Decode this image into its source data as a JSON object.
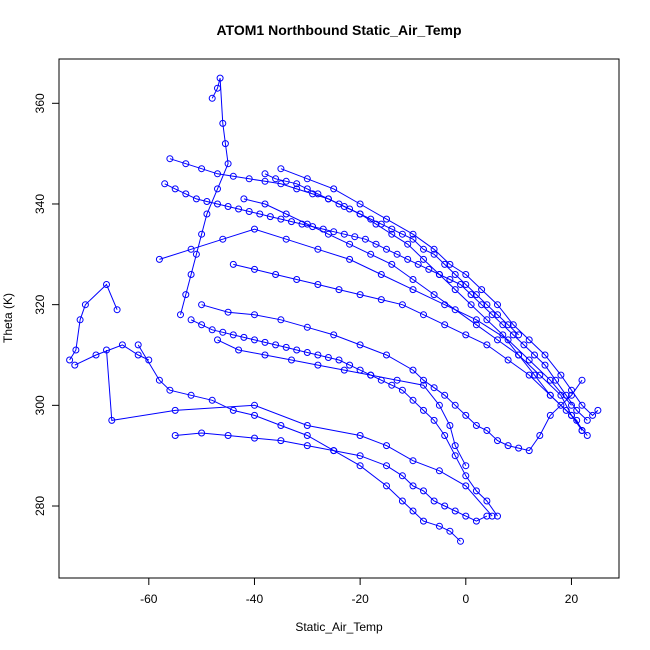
{
  "chart_data": {
    "type": "scatter",
    "title": "ATOM1 Northbound Static_Air_Temp",
    "xlabel": "Static_Air_Temp",
    "ylabel": "Theta (K)",
    "xlim": [
      -77,
      29
    ],
    "ylim": [
      265.7,
      368.8
    ],
    "xticks": [
      -60,
      -40,
      -20,
      0,
      20
    ],
    "yticks": [
      280,
      300,
      320,
      340,
      360
    ],
    "grid": false,
    "style": {
      "point": "open-circle",
      "connected": true
    },
    "colors": {
      "series": "#0000ff",
      "axis": "#000000"
    },
    "series": [
      {
        "x": [
          -75.0,
          -73.8,
          -73.0,
          -72.0,
          -68.0,
          -66.0
        ],
        "y": [
          309.0,
          311.0,
          317.0,
          320.0,
          324.0,
          319.0
        ]
      },
      {
        "x": [
          -68.0,
          -67.0,
          -55.0,
          -40.0,
          -30.0,
          -20.0,
          -15.0,
          -10.0,
          -5.0,
          0.0,
          5.0
        ],
        "y": [
          311.0,
          297.0,
          299.0,
          300.0,
          296.0,
          294.0,
          292.0,
          289.0,
          287.0,
          284.0,
          278.0
        ]
      },
      {
        "x": [
          -62.0,
          -58.0,
          -56.0,
          -52.0,
          -48.0,
          -44.0,
          -40.0,
          -35.0,
          -30.0,
          -25.0,
          -20.0,
          -15.0,
          -12.0,
          -10.0,
          -8.0,
          -5.0,
          -3.0,
          -1.0
        ],
        "y": [
          312.0,
          305.0,
          303.0,
          302.0,
          301.0,
          299.0,
          298.0,
          296.0,
          294.0,
          291.0,
          288.0,
          284.0,
          281.0,
          279.0,
          277.0,
          276.0,
          275.0,
          273.0
        ]
      },
      {
        "x": [
          -55.0,
          -50.0,
          -45.0,
          -40.0,
          -35.0,
          -30.0,
          -25.0,
          -20.0,
          -15.0,
          -12.0,
          -10.0,
          -8.0,
          -6.0,
          -4.0,
          -2.0,
          0.0,
          2.0,
          4.0
        ],
        "y": [
          294.0,
          294.5,
          294.0,
          293.5,
          293.0,
          292.0,
          291.0,
          290.0,
          288.0,
          286.0,
          284.0,
          283.0,
          281.0,
          280.0,
          279.0,
          278.0,
          277.0,
          278.0
        ]
      },
      {
        "x": [
          -47.0,
          -43.0,
          -38.0,
          -33.0,
          -28.0,
          -23.0,
          -18.0,
          -13.0,
          -8.0,
          -5.0,
          -3.0,
          -2.0,
          0.0
        ],
        "y": [
          313.0,
          311.0,
          310.0,
          309.0,
          308.0,
          307.0,
          306.0,
          305.0,
          304.0,
          300.0,
          296.0,
          292.0,
          288.0
        ]
      },
      {
        "x": [
          -52.0,
          -50.0,
          -48.0,
          -46.0,
          -44.0,
          -42.0,
          -40.0,
          -38.0,
          -36.0,
          -34.0,
          -32.0,
          -30.0,
          -28.0,
          -26.0,
          -24.0,
          -22.0,
          -20.0,
          -18.0,
          -16.0,
          -14.0,
          -12.0,
          -10.0,
          -8.0,
          -6.0,
          -4.0,
          -2.0,
          0.0,
          2.0,
          4.0,
          6.0
        ],
        "y": [
          317.0,
          316.0,
          315.0,
          314.5,
          314.0,
          313.5,
          313.0,
          312.5,
          312.0,
          311.5,
          311.0,
          310.5,
          310.0,
          309.5,
          309.0,
          308.0,
          307.0,
          306.0,
          305.0,
          304.0,
          303.0,
          301.0,
          299.0,
          297.0,
          294.0,
          290.0,
          286.0,
          283.0,
          281.0,
          278.0
        ]
      },
      {
        "x": [
          -50.0,
          -45.0,
          -40.0,
          -35.0,
          -30.0,
          -25.0,
          -20.0,
          -15.0,
          -10.0,
          -8.0,
          -6.0,
          -4.0,
          -2.0,
          0.0,
          2.0,
          4.0,
          6.0,
          8.0,
          10.0,
          12.0,
          14.0,
          16.0,
          18.0,
          20.0,
          22.0
        ],
        "y": [
          320.0,
          318.5,
          318.0,
          317.0,
          315.5,
          314.0,
          312.0,
          310.0,
          307.0,
          305.0,
          303.5,
          302.0,
          300.0,
          298.0,
          296.0,
          295.0,
          293.0,
          292.0,
          291.5,
          291.0,
          294.0,
          298.0,
          300.0,
          302.0,
          305.0
        ]
      },
      {
        "x": [
          -56.0,
          -53.0,
          -50.0,
          -47.0,
          -44.0,
          -41.0,
          -38.0,
          -35.0,
          -32.0,
          -29.0,
          -26.0,
          -23.0,
          -20.0,
          -17.0,
          -14.0,
          -11.0,
          -8.0,
          -5.0,
          -2.0,
          1.0,
          4.0,
          7.0,
          10.0,
          13.0,
          16.0,
          19.0,
          21.0,
          22.0
        ],
        "y": [
          349.0,
          348.0,
          347.0,
          346.0,
          345.5,
          345.0,
          344.5,
          344.0,
          343.0,
          342.0,
          341.0,
          339.5,
          338.0,
          336.0,
          334.0,
          332.0,
          329.0,
          326.0,
          323.0,
          320.0,
          317.0,
          314.0,
          310.0,
          306.0,
          302.0,
          299.0,
          297.0,
          295.0
        ]
      },
      {
        "x": [
          -57.0,
          -55.0,
          -53.0,
          -51.0,
          -49.0,
          -47.0,
          -45.0,
          -43.0,
          -41.0,
          -39.0,
          -37.0,
          -35.0,
          -33.0,
          -31.0,
          -29.0,
          -27.0,
          -25.0,
          -23.0,
          -21.0,
          -19.0,
          -17.0,
          -15.0,
          -13.0,
          -11.0,
          -9.0,
          -7.0,
          -5.0,
          -3.0,
          -1.0,
          1.0,
          3.0,
          5.0,
          7.0,
          9.0,
          11.0,
          13.0,
          15.0,
          17.0,
          19.0,
          21.0,
          23.0
        ],
        "y": [
          344.0,
          343.0,
          342.0,
          341.0,
          340.5,
          340.0,
          339.5,
          339.0,
          338.5,
          338.0,
          337.5,
          337.0,
          336.5,
          336.0,
          335.5,
          335.0,
          334.5,
          334.0,
          333.5,
          333.0,
          332.0,
          331.0,
          330.0,
          329.0,
          328.0,
          327.0,
          326.0,
          325.0,
          324.0,
          322.0,
          320.0,
          318.0,
          316.0,
          314.0,
          312.0,
          310.0,
          308.0,
          305.0,
          302.0,
          299.0,
          297.0
        ]
      },
      {
        "x": [
          -48.0,
          -47.0,
          -46.5,
          -46.0,
          -45.5,
          -45.0,
          -47.0,
          -49.0,
          -50.0,
          -51.0,
          -52.0,
          -53.0,
          -54.0
        ],
        "y": [
          361.0,
          363.0,
          365.0,
          356.0,
          352.0,
          348.0,
          343.0,
          338.0,
          334.0,
          330.0,
          326.0,
          322.0,
          318.0
        ]
      },
      {
        "x": [
          -42.0,
          -38.0,
          -34.0,
          -30.0,
          -26.0,
          -22.0,
          -18.0,
          -14.0,
          -10.0,
          -6.0,
          -2.0,
          2.0,
          6.0,
          10.0,
          14.0,
          18.0,
          20.0,
          22.0
        ],
        "y": [
          341.0,
          340.0,
          338.0,
          336.0,
          334.0,
          332.0,
          330.0,
          328.0,
          325.0,
          322.0,
          319.0,
          316.0,
          313.0,
          310.0,
          306.0,
          302.0,
          298.0,
          295.0
        ]
      },
      {
        "x": [
          -44.0,
          -40.0,
          -36.0,
          -32.0,
          -28.0,
          -24.0,
          -20.0,
          -16.0,
          -12.0,
          -8.0,
          -4.0,
          0.0,
          4.0,
          8.0,
          12.0,
          16.0,
          20.0,
          23.0
        ],
        "y": [
          328.0,
          327.0,
          326.0,
          325.0,
          324.0,
          323.0,
          322.0,
          321.0,
          320.0,
          318.0,
          316.0,
          314.0,
          312.0,
          309.0,
          306.0,
          302.0,
          298.0,
          294.0
        ]
      },
      {
        "x": [
          -35.0,
          -30.0,
          -25.0,
          -20.0,
          -15.0,
          -10.0,
          -6.0,
          -3.0,
          0.0,
          3.0,
          6.0,
          9.0,
          12.0,
          15.0,
          18.0,
          20.0,
          22.0,
          24.0,
          25.0
        ],
        "y": [
          347.0,
          345.0,
          343.0,
          340.0,
          337.0,
          334.0,
          331.0,
          328.0,
          326.0,
          323.0,
          320.0,
          316.0,
          313.0,
          310.0,
          306.0,
          303.0,
          300.0,
          298.0,
          299.0
        ]
      },
      {
        "x": [
          -38.0,
          -36.0,
          -34.0,
          -32.0,
          -30.0,
          -28.0,
          -26.0,
          -24.0,
          -22.0,
          -20.0,
          -18.0,
          -16.0,
          -14.0,
          -12.0,
          -10.0,
          -8.0,
          -6.0,
          -4.0,
          -2.0,
          0.0,
          2.0,
          4.0,
          6.0,
          8.0,
          10.0
        ],
        "y": [
          346.0,
          345.0,
          344.5,
          344.0,
          343.0,
          342.0,
          341.0,
          340.0,
          339.0,
          338.0,
          337.0,
          336.0,
          335.0,
          334.0,
          333.0,
          331.0,
          330.0,
          328.0,
          326.0,
          324.0,
          322.0,
          320.0,
          318.0,
          316.0,
          314.0
        ]
      },
      {
        "x": [
          -58.0,
          -52.0,
          -46.0,
          -40.0,
          -34.0,
          -28.0,
          -22.0,
          -16.0,
          -10.0,
          -4.0,
          2.0,
          8.0,
          12.0,
          16.0,
          20.0
        ],
        "y": [
          329.0,
          331.0,
          333.0,
          335.0,
          333.0,
          331.0,
          329.0,
          326.0,
          323.0,
          320.0,
          317.0,
          313.0,
          309.0,
          305.0,
          300.0
        ]
      },
      {
        "x": [
          -74.0,
          -70.0,
          -65.0,
          -62.0,
          -60.0
        ],
        "y": [
          308.0,
          310.0,
          312.0,
          310.0,
          309.0
        ]
      }
    ]
  }
}
